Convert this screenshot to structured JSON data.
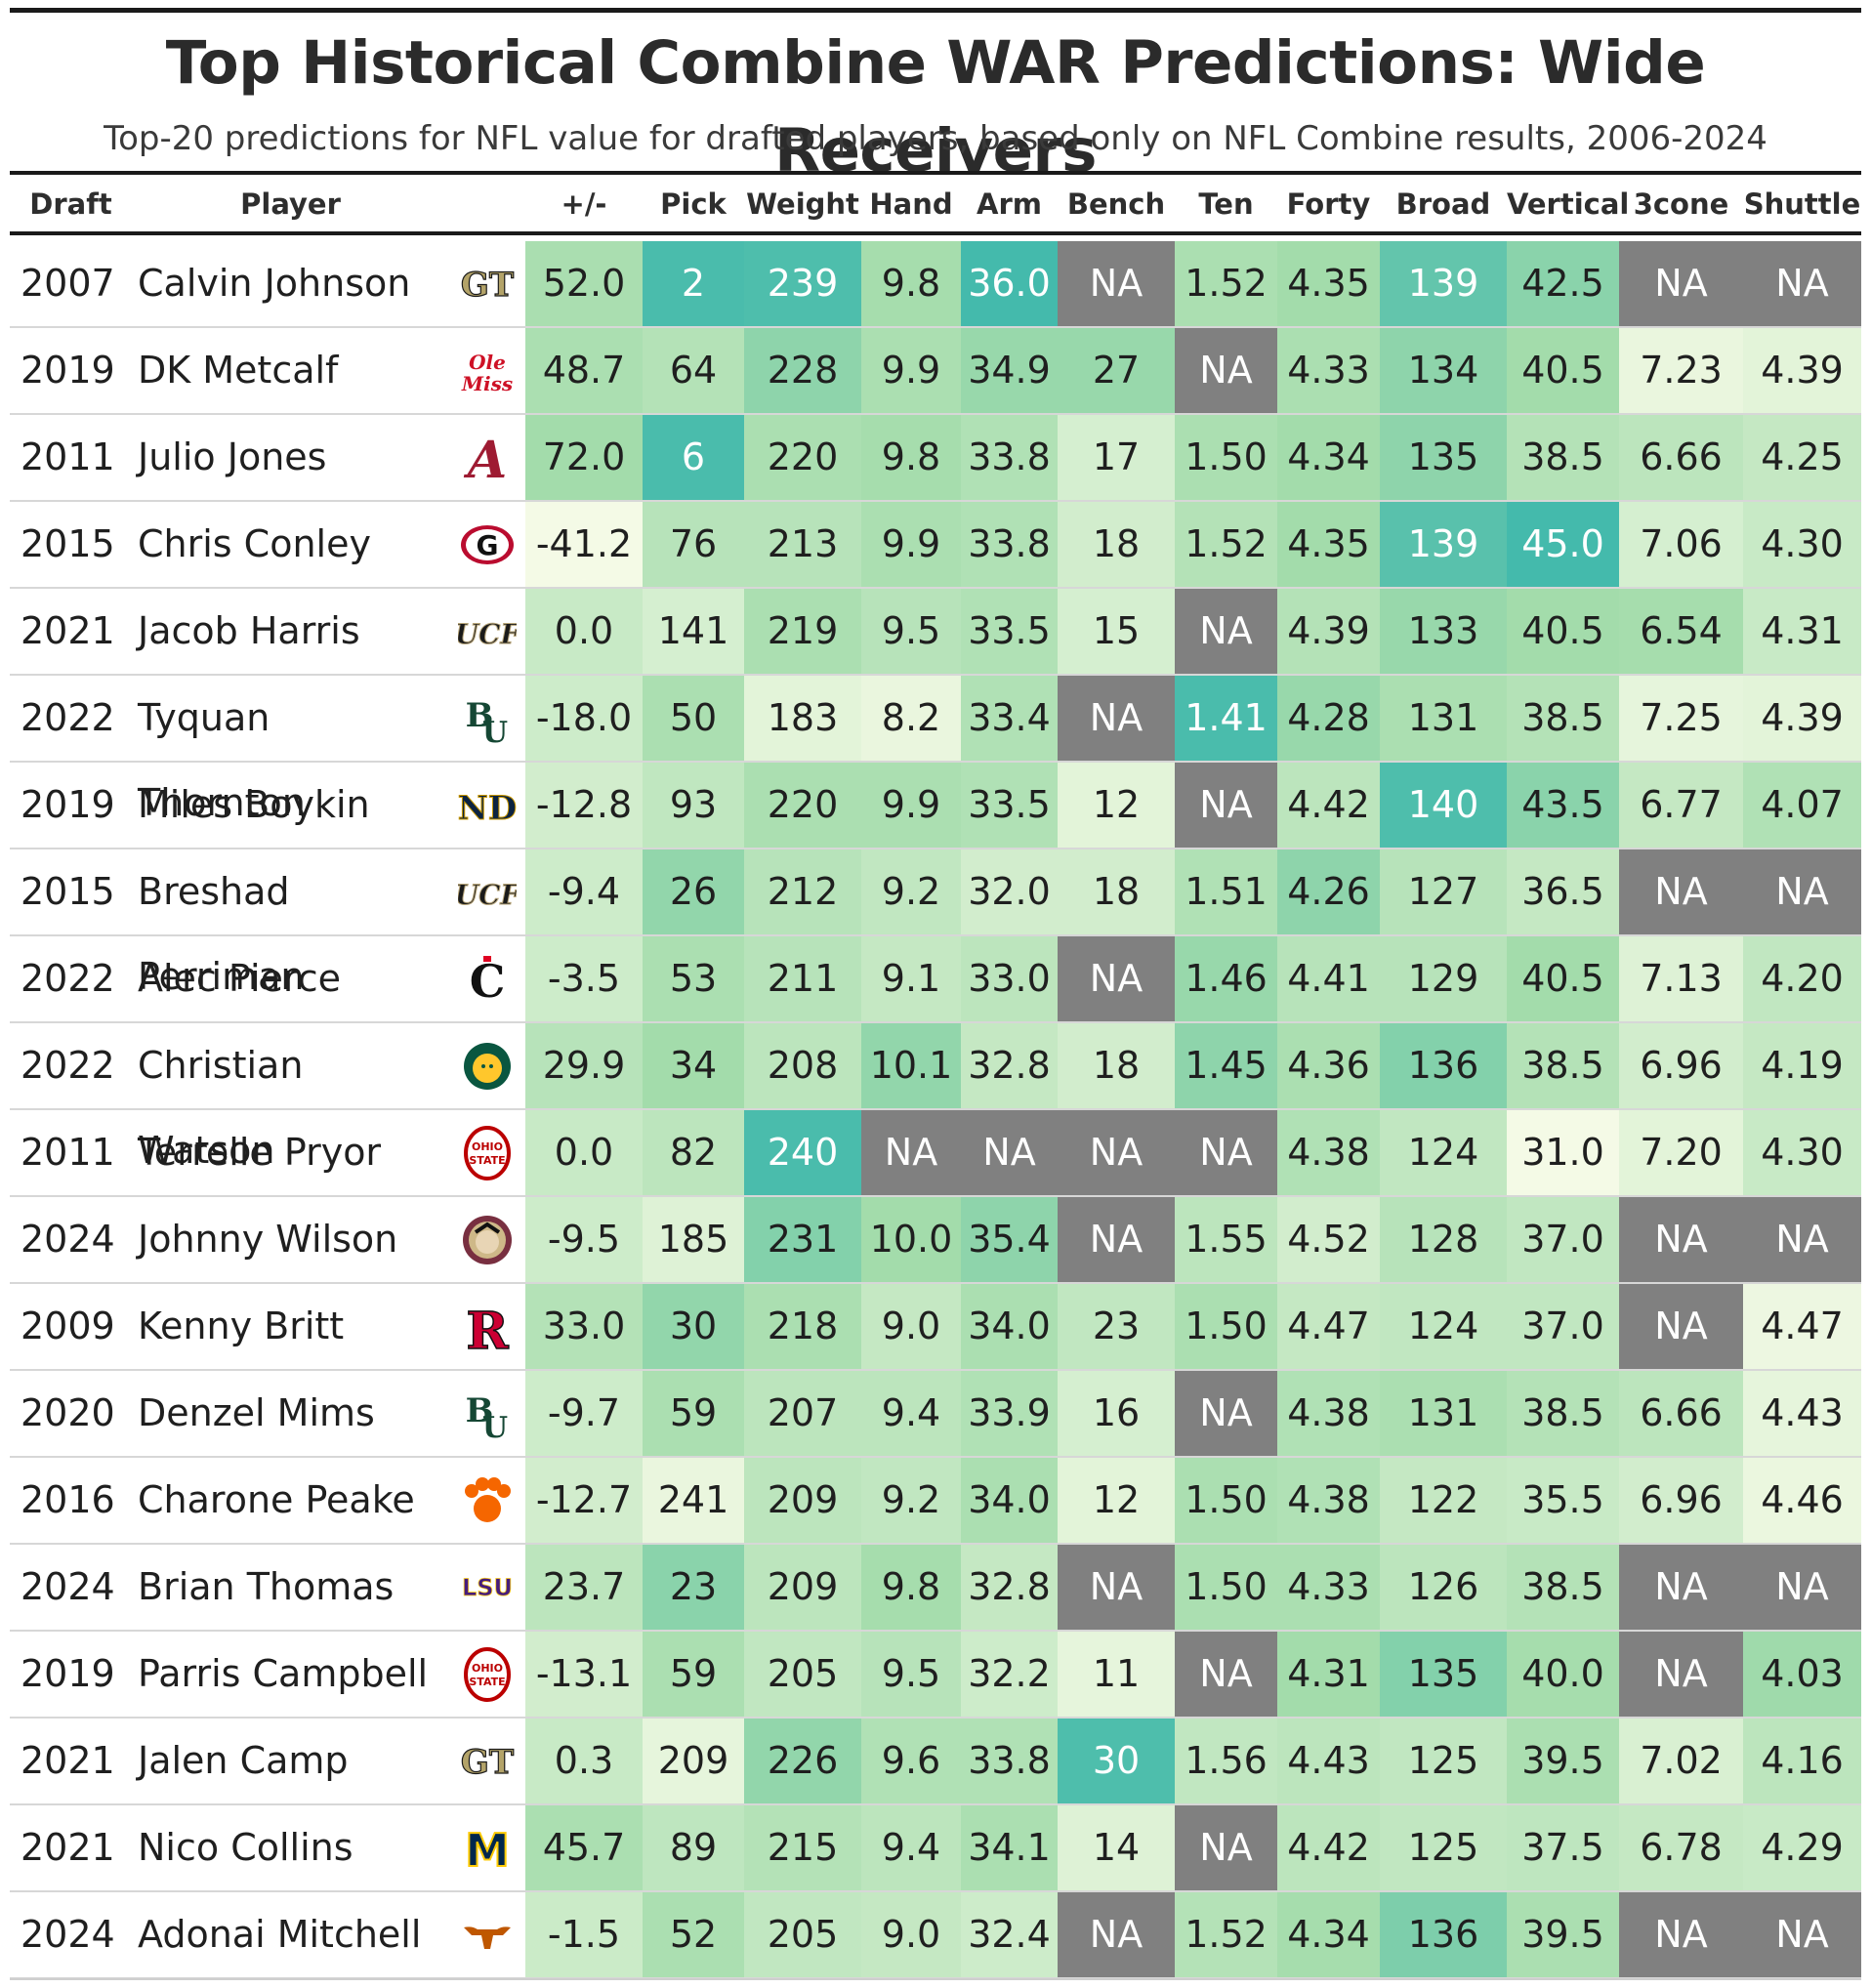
{
  "title": "Top Historical Combine WAR Predictions: Wide Receivers",
  "subtitle": "Top-20 predictions for NFL value for drafted players, based only on NFL Combine results, 2006-2024",
  "columns": [
    "Draft",
    "Player",
    "",
    "+/-",
    "Pick",
    "Weight",
    "Hand",
    "Arm",
    "Bench",
    "Ten",
    "Forty",
    "Broad",
    "Vertical",
    "3cone",
    "Shuttle"
  ],
  "colors": {
    "na": "#808080",
    "scale_light": "#f7fbe8",
    "scale_mid": "#a3dcab",
    "scale_dark": "#39b6ac",
    "text_light": "#ffffff",
    "text_dark": "#1f1f1f"
  },
  "chart_data": {
    "type": "table",
    "title": "Top Historical Combine WAR Predictions: Wide Receivers",
    "metrics": [
      "+/-",
      "Pick",
      "Weight",
      "Hand",
      "Arm",
      "Bench",
      "Ten",
      "Forty",
      "Broad",
      "Vertical",
      "3cone",
      "Shuttle"
    ],
    "rows": [
      {
        "draft": "2007",
        "player": "Calvin Johnson",
        "school_icon": "georgia-tech-logo",
        "values": [
          "52.0",
          "2",
          "239",
          "9.8",
          "36.0",
          "NA",
          "1.52",
          "4.35",
          "139",
          "42.5",
          "NA",
          "NA"
        ],
        "shade": [
          0.46,
          0.92,
          0.9,
          0.48,
          0.95,
          null,
          0.45,
          0.5,
          0.8,
          0.62,
          null,
          null
        ]
      },
      {
        "draft": "2019",
        "player": "DK Metcalf",
        "school_icon": "ole-miss-logo",
        "values": [
          "48.7",
          "64",
          "228",
          "9.9",
          "34.9",
          "27",
          "NA",
          "4.33",
          "134",
          "40.5",
          "7.23",
          "4.39"
        ],
        "shade": [
          0.45,
          0.4,
          0.6,
          0.45,
          0.55,
          0.55,
          null,
          0.45,
          0.6,
          0.5,
          0.08,
          0.12
        ]
      },
      {
        "draft": "2011",
        "player": "Julio Jones",
        "school_icon": "alabama-logo",
        "values": [
          "72.0",
          "6",
          "220",
          "9.8",
          "33.8",
          "17",
          "1.50",
          "4.34",
          "135",
          "38.5",
          "6.66",
          "4.25"
        ],
        "shade": [
          0.5,
          0.92,
          0.45,
          0.48,
          0.42,
          0.2,
          0.45,
          0.5,
          0.6,
          0.4,
          0.35,
          0.3
        ]
      },
      {
        "draft": "2015",
        "player": "Chris Conley",
        "school_icon": "georgia-logo",
        "values": [
          "-41.2",
          "76",
          "213",
          "9.9",
          "33.8",
          "18",
          "1.52",
          "4.35",
          "139",
          "45.0",
          "7.06",
          "4.30"
        ],
        "shade": [
          0.02,
          0.38,
          0.38,
          0.45,
          0.42,
          0.22,
          0.4,
          0.5,
          0.85,
          0.95,
          0.2,
          0.28
        ]
      },
      {
        "draft": "2021",
        "player": "Jacob Harris",
        "school_icon": "ucf-logo",
        "values": [
          "0.0",
          "141",
          "219",
          "9.5",
          "33.5",
          "15",
          "NA",
          "4.39",
          "133",
          "40.5",
          "6.54",
          "4.31"
        ],
        "shade": [
          0.28,
          0.2,
          0.45,
          0.38,
          0.42,
          0.2,
          null,
          0.4,
          0.55,
          0.5,
          0.48,
          0.28
        ]
      },
      {
        "draft": "2022",
        "player": "Tyquan Thornton",
        "school_icon": "baylor-logo",
        "values": [
          "-18.0",
          "50",
          "183",
          "8.2",
          "33.4",
          "NA",
          "1.41",
          "4.28",
          "131",
          "38.5",
          "7.25",
          "4.39"
        ],
        "shade": [
          0.25,
          0.45,
          0.12,
          0.08,
          0.42,
          null,
          0.92,
          0.55,
          0.45,
          0.4,
          0.1,
          0.12
        ]
      },
      {
        "draft": "2019",
        "player": "Miles Boykin",
        "school_icon": "notre-dame-logo",
        "values": [
          "-12.8",
          "93",
          "220",
          "9.9",
          "33.5",
          "12",
          "NA",
          "4.42",
          "140",
          "43.5",
          "6.77",
          "4.07"
        ],
        "shade": [
          0.22,
          0.33,
          0.45,
          0.45,
          0.42,
          0.12,
          null,
          0.35,
          0.9,
          0.62,
          0.3,
          0.42
        ]
      },
      {
        "draft": "2015",
        "player": "Breshad Perriman",
        "school_icon": "ucf-logo",
        "values": [
          "-9.4",
          "26",
          "212",
          "9.2",
          "32.0",
          "18",
          "1.51",
          "4.26",
          "127",
          "36.5",
          "NA",
          "NA"
        ],
        "shade": [
          0.25,
          0.58,
          0.38,
          0.32,
          0.22,
          0.22,
          0.42,
          0.6,
          0.38,
          0.3,
          null,
          null
        ]
      },
      {
        "draft": "2022",
        "player": "Alec Pierce",
        "school_icon": "cincinnati-logo",
        "values": [
          "-3.5",
          "53",
          "211",
          "9.1",
          "33.0",
          "NA",
          "1.46",
          "4.41",
          "129",
          "40.5",
          "7.13",
          "4.20"
        ],
        "shade": [
          0.25,
          0.45,
          0.38,
          0.3,
          0.35,
          null,
          0.55,
          0.38,
          0.38,
          0.5,
          0.15,
          0.32
        ]
      },
      {
        "draft": "2022",
        "player": "Christian Watson",
        "school_icon": "north-dakota-state-logo",
        "values": [
          "29.9",
          "34",
          "208",
          "10.1",
          "32.8",
          "18",
          "1.45",
          "4.36",
          "136",
          "38.5",
          "6.96",
          "4.19"
        ],
        "shade": [
          0.38,
          0.5,
          0.35,
          0.58,
          0.3,
          0.22,
          0.6,
          0.45,
          0.65,
          0.4,
          0.22,
          0.3
        ]
      },
      {
        "draft": "2011",
        "player": "Terrelle Pryor",
        "school_icon": "ohio-state-logo",
        "values": [
          "0.0",
          "82",
          "240",
          "NA",
          "NA",
          "NA",
          "NA",
          "4.38",
          "124",
          "31.0",
          "7.20",
          "4.30"
        ],
        "shade": [
          0.28,
          0.35,
          0.92,
          null,
          null,
          null,
          null,
          0.42,
          0.32,
          0.02,
          0.12,
          0.28
        ]
      },
      {
        "draft": "2024",
        "player": "Johnny Wilson",
        "school_icon": "florida-state-logo",
        "values": [
          "-9.5",
          "185",
          "231",
          "10.0",
          "35.4",
          "NA",
          "1.55",
          "4.52",
          "128",
          "37.0",
          "NA",
          "NA"
        ],
        "shade": [
          0.25,
          0.15,
          0.65,
          0.5,
          0.6,
          null,
          0.35,
          0.22,
          0.38,
          0.32,
          null,
          null
        ]
      },
      {
        "draft": "2009",
        "player": "Kenny Britt",
        "school_icon": "rutgers-logo",
        "values": [
          "33.0",
          "30",
          "218",
          "9.0",
          "34.0",
          "23",
          "1.50",
          "4.47",
          "124",
          "37.0",
          "NA",
          "4.47"
        ],
        "shade": [
          0.4,
          0.58,
          0.45,
          0.3,
          0.45,
          0.32,
          0.45,
          0.3,
          0.32,
          0.32,
          null,
          0.06
        ]
      },
      {
        "draft": "2020",
        "player": "Denzel Mims",
        "school_icon": "baylor-logo",
        "values": [
          "-9.7",
          "59",
          "207",
          "9.4",
          "33.9",
          "16",
          "NA",
          "4.38",
          "131",
          "38.5",
          "6.66",
          "4.43"
        ],
        "shade": [
          0.25,
          0.45,
          0.35,
          0.35,
          0.42,
          0.2,
          null,
          0.42,
          0.45,
          0.4,
          0.35,
          0.1
        ]
      },
      {
        "draft": "2016",
        "player": "Charone Peake",
        "school_icon": "clemson-logo",
        "values": [
          "-12.7",
          "241",
          "209",
          "9.2",
          "34.0",
          "12",
          "1.50",
          "4.38",
          "122",
          "35.5",
          "6.96",
          "4.46"
        ],
        "shade": [
          0.22,
          0.08,
          0.35,
          0.32,
          0.45,
          0.12,
          0.45,
          0.42,
          0.3,
          0.28,
          0.22,
          0.07
        ]
      },
      {
        "draft": "2024",
        "player": "Brian Thomas",
        "school_icon": "lsu-logo",
        "values": [
          "23.7",
          "23",
          "209",
          "9.8",
          "32.8",
          "NA",
          "1.50",
          "4.33",
          "126",
          "38.5",
          "NA",
          "NA"
        ],
        "shade": [
          0.35,
          0.62,
          0.35,
          0.48,
          0.3,
          null,
          0.45,
          0.45,
          0.35,
          0.4,
          null,
          null
        ]
      },
      {
        "draft": "2019",
        "player": "Parris Campbell",
        "school_icon": "ohio-state-logo",
        "values": [
          "-13.1",
          "59",
          "205",
          "9.5",
          "32.2",
          "11",
          "NA",
          "4.31",
          "135",
          "40.0",
          "NA",
          "4.03"
        ],
        "shade": [
          0.22,
          0.45,
          0.32,
          0.38,
          0.25,
          0.1,
          null,
          0.5,
          0.65,
          0.48,
          null,
          0.52
        ]
      },
      {
        "draft": "2021",
        "player": "Jalen Camp",
        "school_icon": "georgia-tech-logo",
        "values": [
          "0.3",
          "209",
          "226",
          "9.6",
          "33.8",
          "30",
          "1.56",
          "4.43",
          "125",
          "39.5",
          "7.02",
          "4.16"
        ],
        "shade": [
          0.28,
          0.1,
          0.58,
          0.42,
          0.42,
          0.9,
          0.32,
          0.35,
          0.32,
          0.45,
          0.18,
          0.35
        ]
      },
      {
        "draft": "2021",
        "player": "Nico Collins",
        "school_icon": "michigan-logo",
        "values": [
          "45.7",
          "89",
          "215",
          "9.4",
          "34.1",
          "14",
          "NA",
          "4.42",
          "125",
          "37.5",
          "6.78",
          "4.29"
        ],
        "shade": [
          0.45,
          0.34,
          0.4,
          0.35,
          0.45,
          0.15,
          null,
          0.35,
          0.32,
          0.34,
          0.3,
          0.28
        ]
      },
      {
        "draft": "2024",
        "player": "Adonai Mitchell",
        "school_icon": "texas-logo",
        "values": [
          "-1.5",
          "52",
          "205",
          "9.0",
          "32.4",
          "NA",
          "1.52",
          "4.34",
          "136",
          "39.5",
          "NA",
          "NA"
        ],
        "shade": [
          0.26,
          0.45,
          0.32,
          0.3,
          0.25,
          null,
          0.4,
          0.48,
          0.68,
          0.45,
          null,
          null
        ]
      }
    ]
  }
}
